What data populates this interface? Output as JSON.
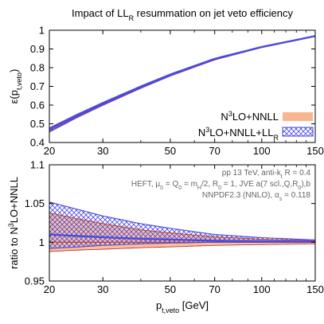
{
  "chart_data": [
    {
      "type": "line",
      "title": {
        "main": "Impact of LL",
        "sub": "R",
        "rest": " resummation on jet veto efficiency"
      },
      "ylabel": {
        "main": "ε(p",
        "sub": "t,veto",
        "rest": ")"
      },
      "xscale": "log",
      "xlim": [
        20,
        150
      ],
      "ylim": [
        0.4,
        1.0
      ],
      "xticks": [
        20,
        30,
        50,
        70,
        100,
        150
      ],
      "xtick_labels": [
        "20",
        "30",
        "50",
        "70",
        "100",
        "150"
      ],
      "yticks": [
        0.4,
        0.5,
        0.6,
        0.7,
        0.8,
        0.9,
        1.0
      ],
      "ytick_labels": [
        "0.4",
        "0.5",
        "0.6",
        "0.7",
        "0.8",
        "0.9",
        "1"
      ],
      "legend_position": "bottom-right",
      "series": [
        {
          "name": {
            "main": "N",
            "sup": "3",
            "rest": "LO+NNLL"
          },
          "style": "solid band",
          "color": "#f7a97c",
          "x": [
            20,
            25,
            30,
            40,
            50,
            70,
            100,
            150
          ],
          "center": [
            0.465,
            0.545,
            0.605,
            0.695,
            0.76,
            0.845,
            0.91,
            0.968
          ],
          "lower": [
            0.455,
            0.537,
            0.598,
            0.689,
            0.755,
            0.841,
            0.907,
            0.966
          ],
          "upper": [
            0.475,
            0.552,
            0.612,
            0.7,
            0.764,
            0.848,
            0.912,
            0.97
          ]
        },
        {
          "name": {
            "main": "N",
            "sup": "3",
            "rest": "LO+NNLL+LL",
            "sub": "R"
          },
          "style": "hatched band",
          "color": "#4a4ae0",
          "x": [
            20,
            25,
            30,
            40,
            50,
            70,
            100,
            150
          ],
          "center": [
            0.468,
            0.547,
            0.607,
            0.697,
            0.762,
            0.846,
            0.911,
            0.969
          ],
          "lower": [
            0.458,
            0.54,
            0.601,
            0.692,
            0.757,
            0.843,
            0.908,
            0.967
          ],
          "upper": [
            0.478,
            0.555,
            0.614,
            0.702,
            0.766,
            0.85,
            0.913,
            0.971
          ]
        }
      ]
    },
    {
      "type": "line",
      "ylabel": {
        "main": "ratio to N",
        "sup": "3",
        "rest": "LO+NNLL"
      },
      "xlabel": {
        "main": "p",
        "sub": "t,veto",
        "rest": " [GeV]"
      },
      "xscale": "log",
      "xlim": [
        20,
        150
      ],
      "ylim": [
        0.95,
        1.1
      ],
      "xticks": [
        20,
        30,
        50,
        70,
        100,
        150
      ],
      "xtick_labels": [
        "20",
        "30",
        "50",
        "70",
        "100",
        "150"
      ],
      "yticks": [
        0.95,
        1.0,
        1.05,
        1.1
      ],
      "ytick_labels": [
        "0.95",
        "1",
        "1.05",
        "1.1"
      ],
      "annotations": [
        {
          "parts": [
            {
              "t": "pp 13 TeV, anti-k"
            },
            {
              "t": "t",
              "sub": true
            },
            {
              "t": " R = 0.4"
            }
          ]
        },
        {
          "parts": [
            {
              "t": "HEFT, μ"
            },
            {
              "t": "0",
              "sub": true
            },
            {
              "t": " = Q"
            },
            {
              "t": "0",
              "sub": true
            },
            {
              "t": " = m"
            },
            {
              "t": "H",
              "sub": true
            },
            {
              "t": "/2, R"
            },
            {
              "t": "0",
              "sub": true
            },
            {
              "t": " = 1, JVE a(7 scl.,Q,R"
            },
            {
              "t": "0",
              "sub": true
            },
            {
              "t": "),b"
            }
          ]
        },
        {
          "parts": [
            {
              "t": "NNPDF2.3 (NNLO), α"
            },
            {
              "t": "s",
              "sub": true
            },
            {
              "t": " = 0.118"
            }
          ]
        }
      ],
      "series": [
        {
          "name": "N3LO+NNLL",
          "style": "solid band",
          "color": "#f7a97c",
          "x": [
            20,
            25,
            30,
            40,
            50,
            70,
            100,
            150
          ],
          "center": [
            1.0,
            1.0,
            1.0,
            1.0,
            1.0,
            1.0,
            1.0,
            1.0
          ],
          "lower": [
            0.988,
            0.99,
            0.991,
            0.993,
            0.994,
            0.996,
            0.997,
            0.998
          ],
          "upper": [
            1.038,
            1.03,
            1.024,
            1.016,
            1.012,
            1.007,
            1.004,
            1.002
          ]
        },
        {
          "name": "N3LO+NNLL+LLR",
          "style": "hatched band",
          "color": "#4a4ae0",
          "x": [
            20,
            25,
            30,
            40,
            50,
            70,
            100,
            150
          ],
          "center": [
            1.01,
            1.008,
            1.0065,
            1.0045,
            1.0035,
            1.002,
            1.0012,
            1.0008
          ],
          "lower": [
            0.992,
            0.994,
            0.996,
            0.998,
            0.999,
            1.0,
            1.0,
            1.0
          ],
          "upper": [
            1.052,
            1.042,
            1.034,
            1.024,
            1.018,
            1.01,
            1.006,
            1.003
          ]
        }
      ]
    }
  ]
}
